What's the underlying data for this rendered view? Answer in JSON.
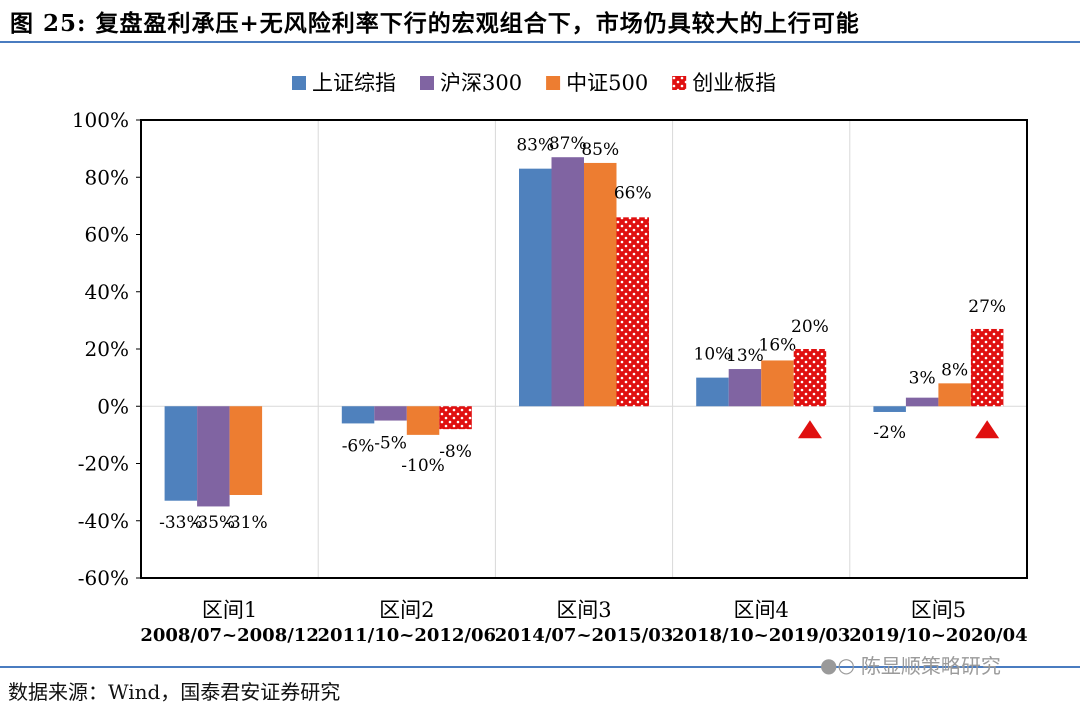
{
  "title": "图 25: 复盘盈利承压+无风险利率下行的宏观组合下，市场仍具较大的上行可能",
  "source": "数据来源：Wind，国泰君安证券研究",
  "watermark": {
    "icon": "wechat-icon",
    "text": "陈显顺策略研究"
  },
  "colors": {
    "rule": "#4a7cc0",
    "up_marker": "#e01010"
  },
  "chart_data": {
    "type": "bar",
    "categories": [
      "区间1",
      "区间2",
      "区间3",
      "区间4",
      "区间5"
    ],
    "category_dates": [
      "2008/07~2008/12",
      "2011/10~2012/06",
      "2014/07~2015/03",
      "2018/10~2019/03",
      "2019/10~2020/04"
    ],
    "series": [
      {
        "name": "上证综指",
        "color": "#4f81bd",
        "pattern": "solid",
        "values": [
          -33,
          -6,
          83,
          10,
          -2
        ],
        "labels": [
          "-33%",
          "-6%",
          "83%",
          "10%",
          "-2%"
        ]
      },
      {
        "name": "沪深300",
        "color": "#8064a2",
        "pattern": "solid",
        "values": [
          -35,
          -5,
          87,
          13,
          3
        ],
        "labels": [
          "-35%",
          "-5%",
          "87%",
          "13%",
          "3%"
        ]
      },
      {
        "name": "中证500",
        "color": "#ed7d31",
        "pattern": "solid",
        "values": [
          -31,
          -10,
          85,
          16,
          8
        ],
        "labels": [
          "-31%",
          "-10%",
          "85%",
          "16%",
          "8%"
        ]
      },
      {
        "name": "创业板指",
        "color": "#e01010",
        "pattern": "dots",
        "values": [
          null,
          -8,
          66,
          20,
          27
        ],
        "labels": [
          "",
          "-8%",
          "66%",
          "20%",
          "27%"
        ]
      }
    ],
    "ylim": [
      -60,
      100
    ],
    "yticks": [
      -60,
      -40,
      -20,
      0,
      20,
      40,
      60,
      80,
      100
    ],
    "ytick_labels": [
      "-60%",
      "-40%",
      "-20%",
      "0%",
      "20%",
      "40%",
      "60%",
      "80%",
      "100%"
    ],
    "grid": "vertical",
    "legend_position": "top-center",
    "markers": [
      {
        "category": "区间4",
        "series": "创业板指",
        "shape": "up-triangle"
      },
      {
        "category": "区间5",
        "series": "创业板指",
        "shape": "up-triangle"
      }
    ]
  }
}
